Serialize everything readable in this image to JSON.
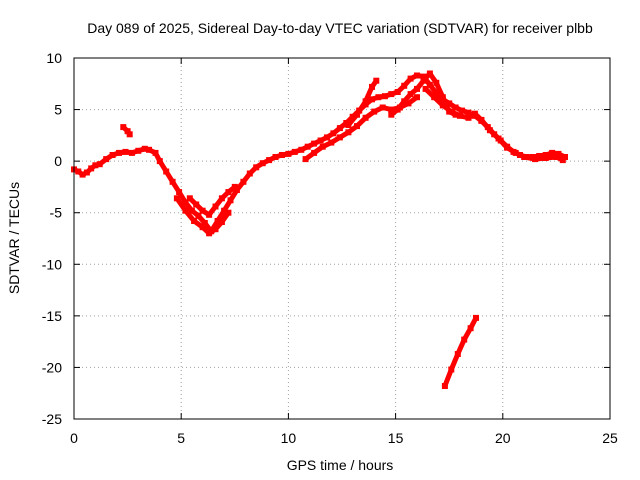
{
  "chart_data": {
    "type": "scatter",
    "title": "Day 089 of 2025, Sidereal Day-to-day VTEC variation (SDTVAR) for receiver plbb",
    "xlabel": "GPS time / hours",
    "ylabel": "SDTVAR / TECUs",
    "xlim": [
      0,
      25
    ],
    "ylim": [
      -25,
      10
    ],
    "xticks": [
      0,
      5,
      10,
      15,
      20,
      25
    ],
    "yticks": [
      -25,
      -20,
      -15,
      -10,
      -5,
      0,
      5,
      10
    ],
    "grid": true,
    "series_color": "#ff0000",
    "series": [
      {
        "name": "main-trace",
        "points": [
          [
            0.0,
            -0.8
          ],
          [
            0.2,
            -1.0
          ],
          [
            0.4,
            -1.3
          ],
          [
            0.6,
            -1.1
          ],
          [
            0.8,
            -0.7
          ],
          [
            1.0,
            -0.4
          ],
          [
            1.2,
            -0.3
          ],
          [
            1.5,
            0.2
          ],
          [
            1.8,
            0.6
          ],
          [
            2.1,
            0.8
          ],
          [
            2.4,
            0.9
          ],
          [
            2.7,
            0.8
          ],
          [
            3.0,
            1.0
          ],
          [
            3.3,
            1.2
          ],
          [
            3.5,
            1.1
          ],
          [
            3.8,
            0.8
          ],
          [
            4.0,
            0.0
          ],
          [
            4.3,
            -1.0
          ],
          [
            4.6,
            -2.0
          ],
          [
            4.9,
            -3.0
          ],
          [
            5.2,
            -4.0
          ],
          [
            5.5,
            -4.8
          ],
          [
            5.8,
            -5.3
          ],
          [
            6.1,
            -6.0
          ],
          [
            6.4,
            -6.8
          ],
          [
            6.7,
            -5.8
          ],
          [
            7.0,
            -4.8
          ],
          [
            7.3,
            -3.8
          ],
          [
            7.6,
            -2.8
          ],
          [
            7.9,
            -2.0
          ],
          [
            8.2,
            -1.2
          ],
          [
            8.5,
            -0.6
          ],
          [
            8.8,
            -0.2
          ],
          [
            9.1,
            0.1
          ],
          [
            9.4,
            0.4
          ],
          [
            9.7,
            0.6
          ],
          [
            10.0,
            0.7
          ],
          [
            10.3,
            0.9
          ],
          [
            10.6,
            1.1
          ],
          [
            10.9,
            1.4
          ],
          [
            11.2,
            1.7
          ],
          [
            11.5,
            2.0
          ],
          [
            11.8,
            2.3
          ],
          [
            12.1,
            2.7
          ],
          [
            12.4,
            3.2
          ],
          [
            12.7,
            3.7
          ],
          [
            13.0,
            4.3
          ],
          [
            13.3,
            4.9
          ],
          [
            13.6,
            5.5
          ],
          [
            13.9,
            6.0
          ],
          [
            14.2,
            6.2
          ],
          [
            14.5,
            6.3
          ],
          [
            14.8,
            6.5
          ],
          [
            15.1,
            6.7
          ],
          [
            15.4,
            7.3
          ],
          [
            15.7,
            8.0
          ],
          [
            16.0,
            8.3
          ],
          [
            16.3,
            8.2
          ],
          [
            16.6,
            7.4
          ],
          [
            16.9,
            6.6
          ],
          [
            17.2,
            6.0
          ],
          [
            17.5,
            5.6
          ],
          [
            17.8,
            5.2
          ],
          [
            18.1,
            4.9
          ],
          [
            18.4,
            4.7
          ],
          [
            18.7,
            4.4
          ],
          [
            19.0,
            3.9
          ],
          [
            19.3,
            3.3
          ],
          [
            19.6,
            2.6
          ],
          [
            19.9,
            2.0
          ],
          [
            20.2,
            1.4
          ],
          [
            20.5,
            0.9
          ],
          [
            20.8,
            0.6
          ],
          [
            21.1,
            0.4
          ],
          [
            21.4,
            0.4
          ],
          [
            21.7,
            0.5
          ],
          [
            22.0,
            0.6
          ],
          [
            22.3,
            0.8
          ],
          [
            22.6,
            0.7
          ],
          [
            22.9,
            0.4
          ]
        ]
      },
      {
        "name": "dip-lower-branch",
        "points": [
          [
            4.8,
            -3.6
          ],
          [
            5.2,
            -4.8
          ],
          [
            5.6,
            -5.8
          ],
          [
            6.0,
            -6.4
          ],
          [
            6.3,
            -7.0
          ],
          [
            6.6,
            -6.6
          ],
          [
            6.9,
            -5.9
          ],
          [
            7.2,
            -5.0
          ]
        ]
      },
      {
        "name": "dip-upper-branch",
        "points": [
          [
            5.4,
            -3.6
          ],
          [
            5.7,
            -4.2
          ],
          [
            6.0,
            -4.8
          ],
          [
            6.3,
            -5.2
          ],
          [
            6.6,
            -4.4
          ],
          [
            6.9,
            -3.6
          ],
          [
            7.2,
            -3.0
          ],
          [
            7.5,
            -2.5
          ]
        ]
      },
      {
        "name": "rise-branch-a",
        "points": [
          [
            10.8,
            0.2
          ],
          [
            11.2,
            0.8
          ],
          [
            11.6,
            1.4
          ],
          [
            12.0,
            1.8
          ],
          [
            12.4,
            2.3
          ],
          [
            12.8,
            2.8
          ],
          [
            13.2,
            3.4
          ],
          [
            13.6,
            4.2
          ],
          [
            14.0,
            4.8
          ],
          [
            14.4,
            5.2
          ],
          [
            14.8,
            5.0
          ],
          [
            15.2,
            5.2
          ],
          [
            15.6,
            5.6
          ],
          [
            16.0,
            6.2
          ]
        ]
      },
      {
        "name": "rise-branch-b",
        "points": [
          [
            12.8,
            3.5
          ],
          [
            13.2,
            4.5
          ],
          [
            13.6,
            5.8
          ],
          [
            13.9,
            7.2
          ],
          [
            14.1,
            7.8
          ]
        ]
      },
      {
        "name": "rise-branch-c",
        "points": [
          [
            14.8,
            4.5
          ],
          [
            15.1,
            5.0
          ],
          [
            15.4,
            5.8
          ],
          [
            15.7,
            6.5
          ],
          [
            16.0,
            7.0
          ],
          [
            16.3,
            7.8
          ],
          [
            16.6,
            8.5
          ],
          [
            16.9,
            7.6
          ],
          [
            17.2,
            6.2
          ],
          [
            17.5,
            4.8
          ],
          [
            17.8,
            4.5
          ]
        ]
      },
      {
        "name": "descent-branch",
        "points": [
          [
            16.4,
            7.0
          ],
          [
            16.8,
            6.2
          ],
          [
            17.2,
            5.4
          ],
          [
            17.6,
            4.8
          ],
          [
            18.0,
            4.4
          ],
          [
            18.4,
            4.2
          ],
          [
            18.7,
            4.6
          ],
          [
            19.0,
            4.0
          ],
          [
            19.4,
            3.0
          ],
          [
            19.8,
            2.2
          ],
          [
            20.2,
            1.3
          ],
          [
            20.6,
            0.8
          ],
          [
            21.0,
            0.4
          ],
          [
            21.5,
            0.2
          ],
          [
            22.0,
            0.3
          ],
          [
            22.5,
            0.4
          ],
          [
            22.8,
            0.1
          ]
        ]
      },
      {
        "name": "short-fragment",
        "points": [
          [
            2.3,
            3.3
          ],
          [
            2.5,
            2.9
          ],
          [
            2.6,
            2.6
          ]
        ]
      },
      {
        "name": "isolated-line",
        "points": [
          [
            17.3,
            -21.8
          ],
          [
            17.6,
            -20.2
          ],
          [
            17.9,
            -18.7
          ],
          [
            18.2,
            -17.3
          ],
          [
            18.5,
            -16.2
          ],
          [
            18.75,
            -15.2
          ]
        ]
      }
    ]
  }
}
